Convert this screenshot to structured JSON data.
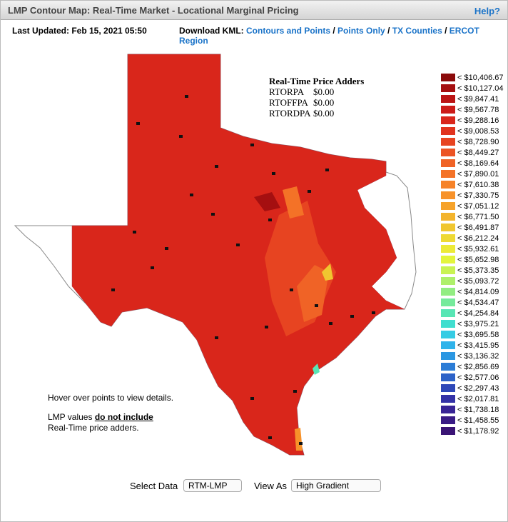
{
  "header": {
    "title": "LMP Contour Map: Real-Time Market - Locational Marginal Pricing",
    "help": "Help?"
  },
  "toolbar": {
    "last_updated": "Last Updated: Feb 15, 2021 05:50",
    "download_label": "Download KML:",
    "separator": "/",
    "links": [
      "Contours and Points",
      "Points Only",
      "TX Counties",
      "ERCOT Region"
    ]
  },
  "adders": {
    "title": "Real-Time Price Adders",
    "rows": [
      {
        "name": "RTORPA",
        "value": "$0.00"
      },
      {
        "name": "RTOFFPA",
        "value": "$0.00"
      },
      {
        "name": "RTORDPA",
        "value": "$0.00"
      }
    ]
  },
  "note": {
    "hover": "Hover over points to view details.",
    "lmp_prefix": "LMP values",
    "lmp_emphasis": "do not include",
    "lmp_suffix": "Real-Time price adders."
  },
  "legend": [
    {
      "label": "< $10,406.67",
      "color": "#8b0a0a"
    },
    {
      "label": "< $10,127.04",
      "color": "#a50f10"
    },
    {
      "label": "< $9,847.41",
      "color": "#bb1414"
    },
    {
      "label": "< $9,567.78",
      "color": "#cc1b18"
    },
    {
      "label": "< $9,288.16",
      "color": "#d9261b"
    },
    {
      "label": "< $9,008.53",
      "color": "#e1341e"
    },
    {
      "label": "< $8,728.90",
      "color": "#e74421"
    },
    {
      "label": "< $8,449.27",
      "color": "#ec5424"
    },
    {
      "label": "< $8,169.64",
      "color": "#f06326"
    },
    {
      "label": "< $7,890.01",
      "color": "#f47227"
    },
    {
      "label": "< $7,610.38",
      "color": "#f68228"
    },
    {
      "label": "< $7,330.75",
      "color": "#f7922a"
    },
    {
      "label": "< $7,051.12",
      "color": "#f6a32b"
    },
    {
      "label": "< $6,771.50",
      "color": "#f3b42d"
    },
    {
      "label": "< $6,491.87",
      "color": "#f0c630"
    },
    {
      "label": "< $6,212.24",
      "color": "#eed934"
    },
    {
      "label": "< $5,932.61",
      "color": "#ecea38"
    },
    {
      "label": "< $5,652.98",
      "color": "#e3f53c"
    },
    {
      "label": "< $5,373.35",
      "color": "#c9f352"
    },
    {
      "label": "< $5,093.72",
      "color": "#aef06a"
    },
    {
      "label": "< $4,814.09",
      "color": "#92ed82"
    },
    {
      "label": "< $4,534.47",
      "color": "#75ea9b"
    },
    {
      "label": "< $4,254.84",
      "color": "#58e6b5"
    },
    {
      "label": "< $3,975.21",
      "color": "#40decf"
    },
    {
      "label": "< $3,695.58",
      "color": "#35cce4"
    },
    {
      "label": "< $3,415.95",
      "color": "#2fb3ea"
    },
    {
      "label": "< $3,136.32",
      "color": "#2b97e2"
    },
    {
      "label": "< $2,856.69",
      "color": "#2b7cd6"
    },
    {
      "label": "< $2,577.06",
      "color": "#2c62c8"
    },
    {
      "label": "< $2,297.43",
      "color": "#2e48b8"
    },
    {
      "label": "< $2,017.81",
      "color": "#3432a6"
    },
    {
      "label": "< $1,738.18",
      "color": "#382495"
    },
    {
      "label": "< $1,458.55",
      "color": "#391b85"
    },
    {
      "label": "< $1,178.92",
      "color": "#3a1475"
    }
  ],
  "controls": {
    "select_data_label": "Select Data",
    "select_data_value": "RTM-LMP",
    "view_as_label": "View As",
    "view_as_value": "High Gradient"
  }
}
